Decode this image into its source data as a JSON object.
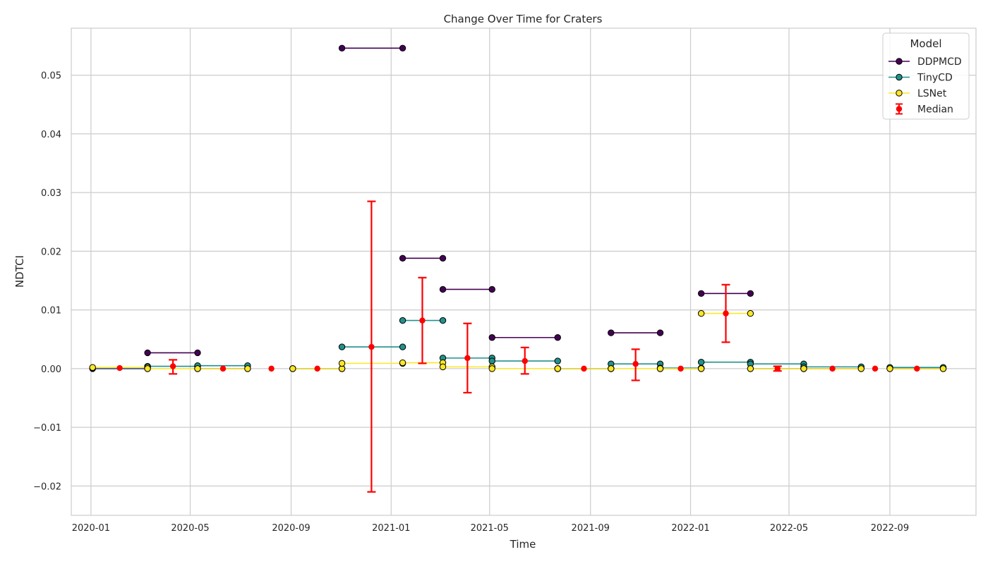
{
  "chart_data": {
    "type": "line",
    "title": "Change Over Time for Craters",
    "xlabel": "Time",
    "ylabel": "NDTCI",
    "ylim": [
      -0.025,
      0.058
    ],
    "xlim": [
      "2019-12-08",
      "2022-12-15"
    ],
    "grid": true,
    "legend": {
      "title": "Model",
      "placement": "top-right"
    },
    "x_ticks": [
      {
        "date": "2020-01-01",
        "label": "2020-01"
      },
      {
        "date": "2020-05-01",
        "label": "2020-05"
      },
      {
        "date": "2020-09-01",
        "label": "2020-09"
      },
      {
        "date": "2021-01-01",
        "label": "2021-01"
      },
      {
        "date": "2021-05-01",
        "label": "2021-05"
      },
      {
        "date": "2021-09-01",
        "label": "2021-09"
      },
      {
        "date": "2022-01-01",
        "label": "2022-01"
      },
      {
        "date": "2022-05-01",
        "label": "2022-05"
      },
      {
        "date": "2022-09-01",
        "label": "2022-09"
      }
    ],
    "y_ticks": [
      {
        "value": -0.02,
        "label": "−0.02"
      },
      {
        "value": -0.01,
        "label": "−0.01"
      },
      {
        "value": 0.0,
        "label": "0.00"
      },
      {
        "value": 0.01,
        "label": "0.01"
      },
      {
        "value": 0.02,
        "label": "0.02"
      },
      {
        "value": 0.03,
        "label": "0.03"
      },
      {
        "value": 0.04,
        "label": "0.04"
      },
      {
        "value": 0.05,
        "label": "0.05"
      }
    ],
    "series": [
      {
        "name": "DDPMCD",
        "color": "#440154",
        "segments": [
          [
            [
              "2020-01-03",
              0.0
            ],
            [
              "2020-03-10",
              0.0
            ]
          ],
          [
            [
              "2020-03-10",
              0.0027
            ],
            [
              "2020-05-10",
              0.0027
            ]
          ],
          [
            [
              "2020-05-10",
              0.0
            ],
            [
              "2020-07-10",
              0.0
            ]
          ],
          [
            [
              "2020-09-03",
              0.0
            ],
            [
              "2020-11-02",
              0.0
            ]
          ],
          [
            [
              "2020-11-02",
              0.0546
            ],
            [
              "2021-01-15",
              0.0546
            ]
          ],
          [
            [
              "2021-01-15",
              0.0188
            ],
            [
              "2021-03-05",
              0.0188
            ]
          ],
          [
            [
              "2021-03-05",
              0.0135
            ],
            [
              "2021-05-04",
              0.0135
            ]
          ],
          [
            [
              "2021-05-04",
              0.0053
            ],
            [
              "2021-07-23",
              0.0053
            ]
          ],
          [
            [
              "2021-07-23",
              0.0
            ],
            [
              "2021-09-26",
              0.0
            ]
          ],
          [
            [
              "2021-09-26",
              0.0061
            ],
            [
              "2021-11-25",
              0.0061
            ]
          ],
          [
            [
              "2021-11-25",
              0.0
            ],
            [
              "2022-01-14",
              0.0
            ]
          ],
          [
            [
              "2022-01-14",
              0.0128
            ],
            [
              "2022-03-15",
              0.0128
            ]
          ],
          [
            [
              "2022-03-15",
              0.0
            ],
            [
              "2022-05-19",
              0.0
            ]
          ],
          [
            [
              "2022-05-19",
              0.0
            ],
            [
              "2022-07-28",
              0.0
            ]
          ],
          [
            [
              "2022-09-01",
              0.0
            ],
            [
              "2022-11-05",
              0.0
            ]
          ]
        ]
      },
      {
        "name": "TinyCD",
        "color": "#21918c",
        "segments": [
          [
            [
              "2020-01-03",
              0.0001
            ],
            [
              "2020-03-10",
              0.0001
            ]
          ],
          [
            [
              "2020-03-10",
              0.0004
            ],
            [
              "2020-05-10",
              0.0004
            ]
          ],
          [
            [
              "2020-05-10",
              0.0005
            ],
            [
              "2020-07-10",
              0.0005
            ]
          ],
          [
            [
              "2020-09-03",
              0.0
            ],
            [
              "2020-11-02",
              0.0
            ]
          ],
          [
            [
              "2020-11-02",
              0.0037
            ],
            [
              "2021-01-15",
              0.0037
            ]
          ],
          [
            [
              "2021-01-15",
              0.0082
            ],
            [
              "2021-03-05",
              0.0082
            ]
          ],
          [
            [
              "2021-03-05",
              0.0018
            ],
            [
              "2021-05-04",
              0.0018
            ]
          ],
          [
            [
              "2021-05-04",
              0.0013
            ],
            [
              "2021-07-23",
              0.0013
            ]
          ],
          [
            [
              "2021-07-23",
              0.0
            ],
            [
              "2021-09-26",
              0.0
            ]
          ],
          [
            [
              "2021-09-26",
              0.0008
            ],
            [
              "2021-11-25",
              0.0008
            ]
          ],
          [
            [
              "2021-11-25",
              0.0001
            ],
            [
              "2022-01-14",
              0.0001
            ]
          ],
          [
            [
              "2022-01-14",
              0.0011
            ],
            [
              "2022-03-15",
              0.0011
            ]
          ],
          [
            [
              "2022-03-15",
              0.0008
            ],
            [
              "2022-05-19",
              0.0008
            ]
          ],
          [
            [
              "2022-05-19",
              0.0003
            ],
            [
              "2022-07-28",
              0.0003
            ]
          ],
          [
            [
              "2022-09-01",
              0.0002
            ],
            [
              "2022-11-05",
              0.0002
            ]
          ]
        ]
      },
      {
        "name": "LSNet",
        "color": "#fde725",
        "segments": [
          [
            [
              "2020-01-03",
              0.0002
            ],
            [
              "2020-03-10",
              0.0002
            ]
          ],
          [
            [
              "2020-03-10",
              0.0
            ],
            [
              "2020-05-10",
              0.0
            ]
          ],
          [
            [
              "2020-05-10",
              0.0
            ],
            [
              "2020-07-10",
              0.0
            ]
          ],
          [
            [
              "2020-09-03",
              0.0
            ],
            [
              "2020-11-02",
              0.0
            ]
          ],
          [
            [
              "2020-11-02",
              0.0009
            ],
            [
              "2021-01-15",
              0.0009
            ]
          ],
          [
            [
              "2021-01-15",
              0.001
            ],
            [
              "2021-03-05",
              0.001
            ]
          ],
          [
            [
              "2021-03-05",
              0.0003
            ],
            [
              "2021-05-04",
              0.0003
            ]
          ],
          [
            [
              "2021-05-04",
              0.0
            ],
            [
              "2021-07-23",
              0.0
            ]
          ],
          [
            [
              "2021-07-23",
              0.0
            ],
            [
              "2021-09-26",
              0.0
            ]
          ],
          [
            [
              "2021-09-26",
              0.0
            ],
            [
              "2021-11-25",
              0.0
            ]
          ],
          [
            [
              "2021-11-25",
              0.0
            ],
            [
              "2022-01-14",
              0.0
            ]
          ],
          [
            [
              "2022-01-14",
              0.0094
            ],
            [
              "2022-03-15",
              0.0094
            ]
          ],
          [
            [
              "2022-03-15",
              0.0
            ],
            [
              "2022-05-19",
              0.0
            ]
          ],
          [
            [
              "2022-05-19",
              0.0
            ],
            [
              "2022-07-28",
              0.0
            ]
          ],
          [
            [
              "2022-09-01",
              0.0
            ],
            [
              "2022-11-05",
              0.0
            ]
          ]
        ]
      }
    ],
    "median": {
      "name": "Median",
      "color": "#ff0000",
      "points": [
        {
          "x": "2020-02-05",
          "y": 0.0001,
          "lo": 0.0001,
          "hi": 0.0001
        },
        {
          "x": "2020-04-10",
          "y": 0.0004,
          "lo": -0.0009,
          "hi": 0.0015
        },
        {
          "x": "2020-06-10",
          "y": 0.0,
          "lo": 0.0,
          "hi": 0.0
        },
        {
          "x": "2020-08-08",
          "y": 0.0,
          "lo": 0.0,
          "hi": 0.0
        },
        {
          "x": "2020-10-03",
          "y": 0.0,
          "lo": 0.0,
          "hi": 0.0
        },
        {
          "x": "2020-12-08",
          "y": 0.0037,
          "lo": -0.021,
          "hi": 0.0285
        },
        {
          "x": "2021-02-08",
          "y": 0.0082,
          "lo": 0.0009,
          "hi": 0.0155
        },
        {
          "x": "2021-04-04",
          "y": 0.0018,
          "lo": -0.0041,
          "hi": 0.0077
        },
        {
          "x": "2021-06-13",
          "y": 0.0013,
          "lo": -0.0009,
          "hi": 0.0036
        },
        {
          "x": "2021-08-24",
          "y": 0.0,
          "lo": 0.0,
          "hi": 0.0
        },
        {
          "x": "2021-10-26",
          "y": 0.0008,
          "lo": -0.002,
          "hi": 0.0033
        },
        {
          "x": "2021-12-20",
          "y": 0.0,
          "lo": 0.0,
          "hi": 0.0
        },
        {
          "x": "2022-02-13",
          "y": 0.0094,
          "lo": 0.0045,
          "hi": 0.0143
        },
        {
          "x": "2022-04-17",
          "y": 0.0,
          "lo": -0.0004,
          "hi": 0.0004
        },
        {
          "x": "2022-06-23",
          "y": 0.0,
          "lo": 0.0,
          "hi": 0.0
        },
        {
          "x": "2022-08-14",
          "y": 0.0,
          "lo": 0.0,
          "hi": 0.0
        },
        {
          "x": "2022-10-04",
          "y": 0.0,
          "lo": 0.0,
          "hi": 0.0
        }
      ]
    }
  }
}
